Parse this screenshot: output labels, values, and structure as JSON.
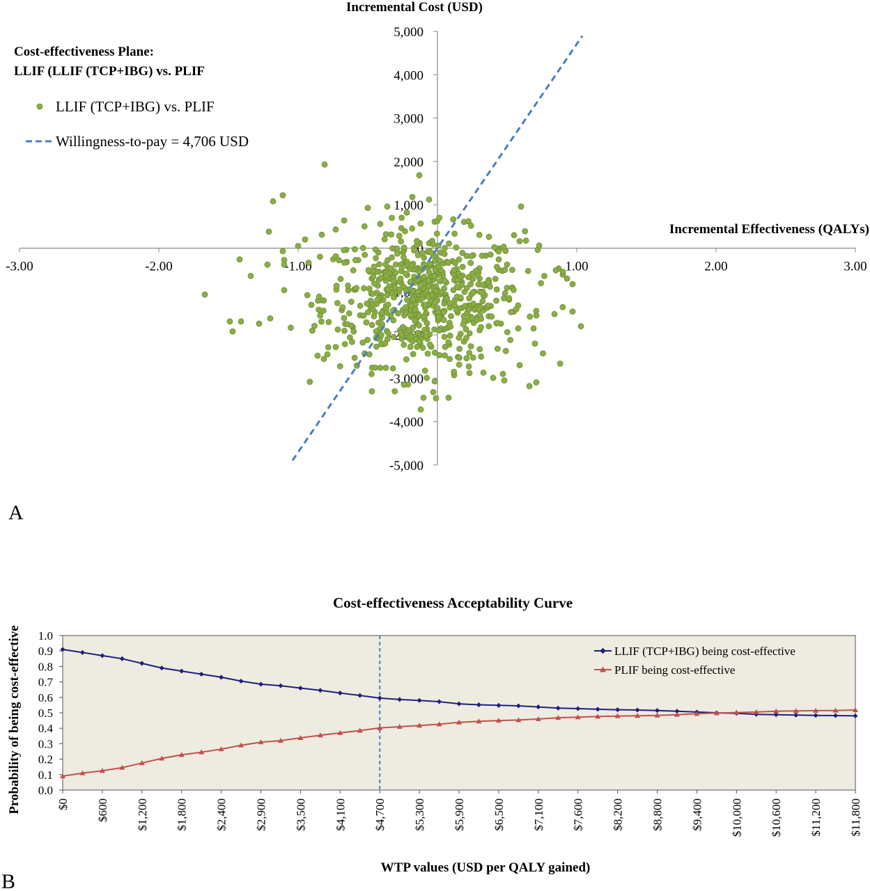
{
  "chart_data": [
    {
      "panel_label": "A",
      "type": "scatter",
      "title": "Cost-effectiveness Plane:",
      "subtitle": "LLIF (LLIF (TCP+IBG) vs. PLIF",
      "xlabel": "Incremental Effectiveness (QALYs)",
      "ylabel": "Incremental Cost (USD)",
      "xlim": [
        -3,
        3
      ],
      "ylim": [
        -5000,
        5000
      ],
      "x_ticks": [
        "-3.00",
        "-2.00",
        "-1.00",
        "1.00",
        "2.00",
        "3.00"
      ],
      "x_tick_values": [
        -3,
        -2,
        -1,
        1,
        2,
        3
      ],
      "y_ticks": [
        "5,000",
        "4,000",
        "3,000",
        "2,000",
        "1,000",
        "0",
        "-1,000",
        "-2,000",
        "-3,000",
        "-4,000",
        "-5,000"
      ],
      "y_tick_values": [
        5000,
        4000,
        3000,
        2000,
        1000,
        0,
        -1000,
        -2000,
        -3000,
        -4000,
        -5000
      ],
      "grid": false,
      "legend_position": "top-left",
      "series": [
        {
          "name": "LLIF (TCP+IBG) vs. PLIF",
          "kind": "points",
          "color": "#8aae45",
          "points": [
            [
              -0.81,
              1930
            ],
            [
              -0.13,
              1680
            ],
            [
              -1.11,
              1220
            ],
            [
              -1.18,
              1080
            ],
            [
              -0.18,
              1180
            ],
            [
              -0.06,
              1120
            ],
            [
              -0.5,
              930
            ],
            [
              0.6,
              960
            ],
            [
              -0.36,
              960
            ],
            [
              -0.22,
              820
            ],
            [
              -0.02,
              610
            ],
            [
              -1.67,
              -1070
            ],
            [
              -1.49,
              -1690
            ],
            [
              -1.47,
              -1920
            ],
            [
              -1.41,
              -1690
            ],
            [
              -1.28,
              -1740
            ],
            [
              -1.2,
              -1620
            ],
            [
              -1.42,
              -260
            ],
            [
              -1.34,
              -640
            ],
            [
              -1.22,
              -380
            ],
            [
              -1.21,
              380
            ],
            [
              0.97,
              -830
            ],
            [
              0.93,
              -700
            ],
            [
              0.87,
              -470
            ],
            [
              0.9,
              -610
            ],
            [
              0.85,
              -510
            ],
            [
              0.97,
              -1460
            ],
            [
              1.03,
              -1800
            ],
            [
              0.84,
              -1520
            ],
            [
              0.71,
              -1550
            ],
            [
              0.69,
              -1850
            ],
            [
              0.7,
              -2200
            ],
            [
              0.66,
              -3180
            ],
            [
              0.48,
              -3050
            ],
            [
              0.47,
              -2900
            ],
            [
              0.59,
              -2700
            ],
            [
              -0.12,
              -3720
            ],
            [
              -0.01,
              -3460
            ],
            [
              0.08,
              -3450
            ],
            [
              -0.1,
              -3450
            ],
            [
              -0.03,
              -3320
            ],
            [
              -0.37,
              -2760
            ],
            [
              -0.41,
              -2760
            ],
            [
              -0.86,
              -2480
            ],
            [
              -0.79,
              -2450
            ],
            [
              -0.73,
              -2280
            ],
            [
              0.33,
              -2870
            ],
            [
              0.23,
              -2880
            ],
            [
              0.12,
              -2930
            ],
            [
              0.4,
              -2990
            ],
            [
              -0.02,
              -3070
            ],
            [
              0.72,
              -40
            ],
            [
              0.73,
              60
            ],
            [
              0.59,
              160
            ],
            [
              0.55,
              300
            ],
            [
              0.44,
              -260
            ],
            [
              0.37,
              260
            ],
            [
              -0.95,
              200
            ],
            [
              -1.0,
              50
            ],
            [
              -1.11,
              -70
            ],
            [
              -0.83,
              310
            ],
            [
              -0.73,
              430
            ],
            [
              -0.67,
              640
            ]
          ],
          "cloud": {
            "count": 640,
            "x_mean": -0.1,
            "x_sd": 0.36,
            "y_mean": -1150,
            "y_sd": 760
          }
        },
        {
          "name": "Willingness-to-pay = 4,706 USD",
          "kind": "line",
          "color": "#4a7ebb",
          "dash": true,
          "slope": 4706,
          "x_range": [
            -1.04,
            1.04
          ]
        }
      ]
    },
    {
      "panel_label": "B",
      "type": "line",
      "title": "Cost-effectiveness Acceptability Curve",
      "xlabel": "WTP values (USD per QALY gained)",
      "ylabel": "Probability of being cost-effective",
      "ylim": [
        0,
        1
      ],
      "y_ticks": [
        "1.0",
        "0.9",
        "0.8",
        "0.7",
        "0.6",
        "0.5",
        "0.4",
        "0.3",
        "0.2",
        "0.1",
        "0.0"
      ],
      "x_tick_labels": [
        "$0",
        "$600",
        "$1,200",
        "$1,800",
        "$2,400",
        "$2,900",
        "$3,500",
        "$4,100",
        "$4,700",
        "$5,300",
        "$5,900",
        "$6,500",
        "$7,100",
        "$7,600",
        "$8,200",
        "$8,800",
        "$9,400",
        "$10,000",
        "$10,600",
        "$11,200",
        "$11,800"
      ],
      "plot_background": "#eeebe1",
      "grid": false,
      "legend_position": "top-right",
      "reference_line": {
        "x_index": 16,
        "label": "",
        "color": "#4a7ebb",
        "dash": true
      },
      "series": [
        {
          "name": "LLIF (TCP+IBG) being cost-effective",
          "color": "#1f1f7a",
          "marker": "diamond",
          "values": [
            0.91,
            0.89,
            0.87,
            0.85,
            0.82,
            0.79,
            0.77,
            0.75,
            0.73,
            0.705,
            0.685,
            0.675,
            0.66,
            0.645,
            0.628,
            0.612,
            0.595,
            0.586,
            0.58,
            0.572,
            0.558,
            0.552,
            0.548,
            0.545,
            0.538,
            0.53,
            0.527,
            0.523,
            0.52,
            0.518,
            0.515,
            0.51,
            0.505,
            0.5,
            0.497,
            0.49,
            0.488,
            0.485,
            0.483,
            0.482,
            0.48
          ]
        },
        {
          "name": "PLIF being cost-effective",
          "color": "#c0504d",
          "marker": "triangle",
          "values": [
            0.09,
            0.11,
            0.125,
            0.145,
            0.175,
            0.205,
            0.228,
            0.245,
            0.265,
            0.29,
            0.31,
            0.32,
            0.338,
            0.355,
            0.37,
            0.385,
            0.402,
            0.41,
            0.418,
            0.426,
            0.438,
            0.445,
            0.45,
            0.453,
            0.46,
            0.468,
            0.472,
            0.476,
            0.479,
            0.481,
            0.483,
            0.488,
            0.494,
            0.498,
            0.502,
            0.505,
            0.51,
            0.512,
            0.514,
            0.515,
            0.518
          ]
        }
      ]
    }
  ]
}
